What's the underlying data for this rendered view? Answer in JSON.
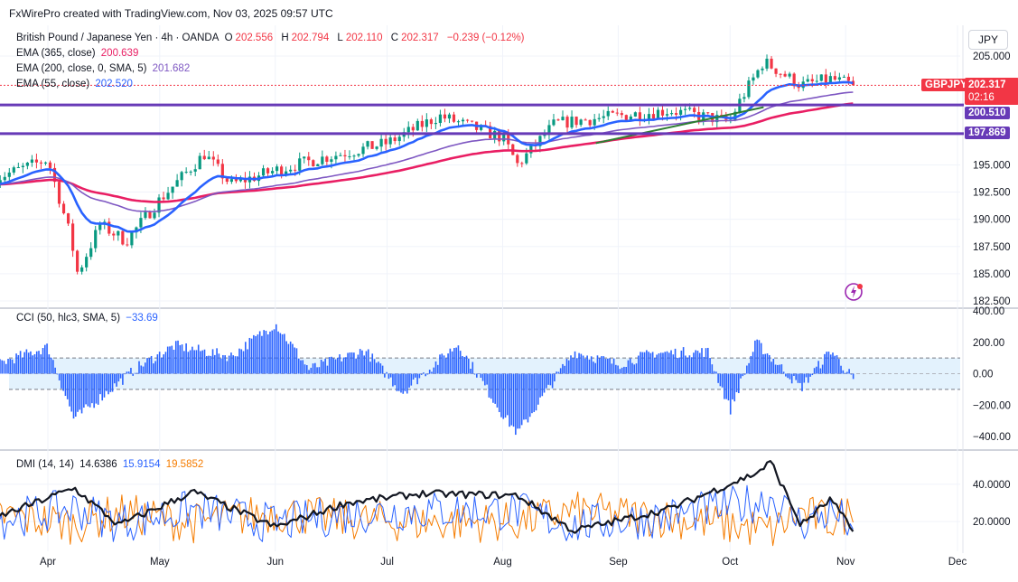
{
  "header": {
    "credit": "FxWirePro created with TradingView.com, Nov 03, 2025 09:57 UTC",
    "currency_button": "JPY"
  },
  "main_legend": {
    "symbol": "British Pound / Japanese Yen · 4h · OANDA",
    "o_label": "O",
    "o_value": "202.556",
    "h_label": "H",
    "h_value": "202.794",
    "l_label": "L",
    "l_value": "202.110",
    "c_label": "C",
    "c_value": "202.317",
    "change": "−0.239 (−0.12%)",
    "ema365_label": "EMA (365, close)",
    "ema365_value": "200.639",
    "ema200_label": "EMA (200, close, 0, SMA, 5)",
    "ema200_value": "201.682",
    "ema55_label": "EMA (55, close)",
    "ema55_value": "202.520"
  },
  "cci_legend": {
    "label": "CCI (50, hlc3, SMA, 5)",
    "value": "−33.69"
  },
  "dmi_legend": {
    "label": "DMI (14, 14)",
    "adx": "14.6386",
    "plus_di": "15.9154",
    "minus_di": "19.5852"
  },
  "price_tags": {
    "symbol": "GBPJPY",
    "last": "202.317",
    "countdown": "02:16",
    "level_1": "200.510",
    "level_2": "197.869"
  },
  "colors": {
    "ema365": "#e91e63",
    "ema200": "#7e57c2",
    "ema55": "#2962ff",
    "hline": "#673ab7",
    "trendline": "#2e7d32",
    "up": "#089981",
    "down": "#f23645",
    "cci": "#2962ff",
    "adx": "#131722",
    "plus_di": "#2962ff",
    "minus_di": "#f57c00",
    "last_tag": "#f23645"
  },
  "chart_data": [
    {
      "type": "candlestick",
      "title": "British Pound / Japanese Yen · 4h · OANDA",
      "ylim": [
        182.5,
        205
      ],
      "y_ticks": [
        "205.000",
        "195.000",
        "192.500",
        "190.000",
        "187.500",
        "185.000",
        "182.500"
      ],
      "x_ticks": [
        "Apr",
        "May",
        "Jun",
        "Jul",
        "Aug",
        "Sep",
        "Oct",
        "Nov",
        "Dec"
      ],
      "horizontal_levels": [
        200.51,
        197.869
      ],
      "close_keypoints": {
        "x": [
          "Mar 18",
          "Apr 1",
          "Apr 7",
          "Apr 9",
          "Apr 15",
          "Apr 22",
          "May 1",
          "May 13",
          "May 20",
          "Jun 1",
          "Jun 12",
          "Jul 1",
          "Jul 15",
          "Aug 1",
          "Aug 5",
          "Aug 15",
          "Sep 1",
          "Sep 15",
          "Oct 1",
          "Oct 3",
          "Oct 10",
          "Oct 20",
          "Oct 28",
          "Nov 3"
        ],
        "values": [
          193.8,
          195.5,
          188.5,
          185.0,
          189.5,
          188.0,
          191.8,
          196.0,
          193.2,
          194.5,
          195.5,
          197.0,
          199.5,
          197.5,
          195.0,
          198.8,
          199.5,
          200.0,
          199.0,
          200.5,
          204.5,
          202.3,
          202.9,
          202.317
        ]
      },
      "series": [
        {
          "name": "EMA (365, close)",
          "last": 200.639
        },
        {
          "name": "EMA (200, close, 0, SMA, 5)",
          "last": 201.682
        },
        {
          "name": "EMA (55, close)",
          "last": 202.52
        }
      ]
    },
    {
      "type": "bar",
      "title": "CCI (50, hlc3, SMA, 5)",
      "ylim": [
        -400,
        400
      ],
      "y_ticks": [
        "400.00",
        "200.00",
        "0.00",
        "−200.00",
        "−400.00"
      ],
      "band": [
        -100,
        100
      ],
      "last": -33.69,
      "keypoints": {
        "x": [
          "Mar 18",
          "Apr 1",
          "Apr 8",
          "Apr 25",
          "May 5",
          "May 20",
          "Jun 1",
          "Jun 10",
          "Jun 25",
          "Jul 5",
          "Jul 20",
          "Aug 1",
          "Aug 5",
          "Aug 20",
          "Sep 1",
          "Sep 10",
          "Sep 25",
          "Oct 1",
          "Oct 8",
          "Oct 20",
          "Oct 28",
          "Nov 3"
        ],
        "values": [
          60,
          170,
          -290,
          40,
          180,
          110,
          320,
          30,
          150,
          -120,
          190,
          -260,
          -380,
          140,
          60,
          130,
          140,
          -230,
          200,
          -90,
          150,
          -34
        ]
      }
    },
    {
      "type": "line",
      "title": "DMI (14, 14)",
      "ylim": [
        5,
        55
      ],
      "y_ticks": [
        "40.0000",
        "20.0000"
      ],
      "series": [
        {
          "name": "ADX",
          "last": 14.6386
        },
        {
          "name": "+DI",
          "last": 15.9154
        },
        {
          "name": "−DI",
          "last": 19.5852
        }
      ],
      "adx_keypoints": {
        "x": [
          "Mar 18",
          "Apr 8",
          "Apr 20",
          "May 10",
          "Jun 1",
          "Jun 20",
          "Jul 10",
          "Aug 5",
          "Aug 20",
          "Sep 15",
          "Oct 8",
          "Oct 12",
          "Oct 20",
          "Oct 28",
          "Nov 3"
        ],
        "values": [
          22,
          38,
          18,
          36,
          17,
          30,
          35,
          34,
          15,
          27,
          46,
          52,
          18,
          32,
          14.64
        ]
      }
    }
  ]
}
